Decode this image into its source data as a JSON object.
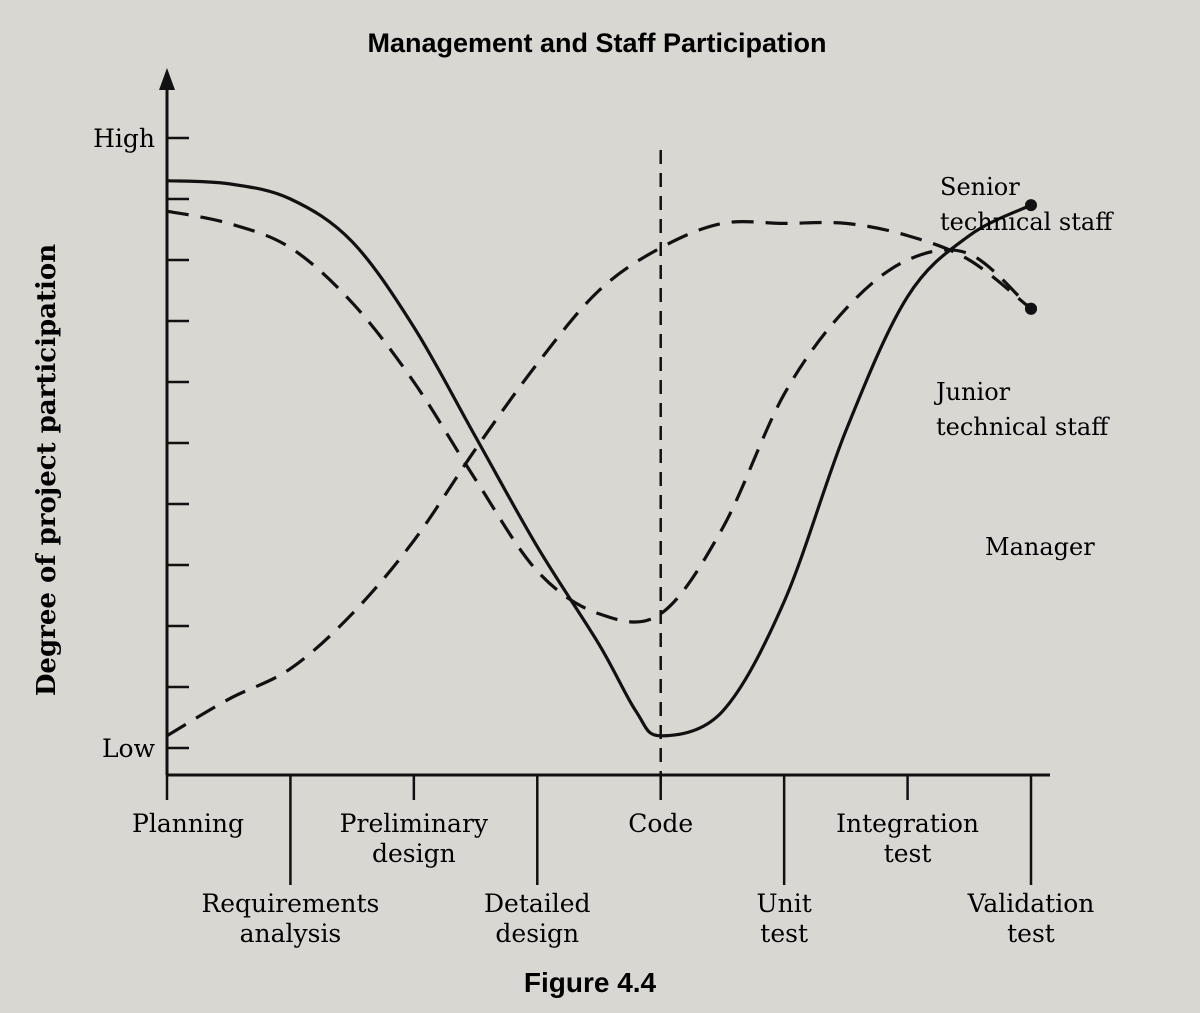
{
  "chart_data": {
    "type": "line",
    "title": "Management and Staff Participation",
    "caption": "Figure 4.4",
    "ylabel": "Degree of project participation",
    "xlabel": "",
    "y_ticks": [
      {
        "label": "High",
        "value": 10
      },
      {
        "label": "Low",
        "value": 0
      }
    ],
    "ylim": [
      0,
      10
    ],
    "x": [
      0,
      1,
      2,
      3,
      4,
      5,
      6,
      7
    ],
    "categories": [
      "Planning",
      "Requirements analysis",
      "Preliminary design",
      "Detailed design",
      "Code",
      "Unit test",
      "Integration test",
      "Validation test"
    ],
    "grid": false,
    "legend": "inline labels at right",
    "series": [
      {
        "name": "Senior technical staff",
        "style": "solid",
        "x": [
          0,
          0.5,
          1,
          1.5,
          2,
          2.5,
          3,
          3.5,
          3.8,
          4,
          4.5,
          5,
          5.5,
          6,
          6.5,
          7
        ],
        "y": [
          9.3,
          9.25,
          9.0,
          8.3,
          6.9,
          5.1,
          3.3,
          1.7,
          0.6,
          0.2,
          0.6,
          2.4,
          5.2,
          7.4,
          8.4,
          8.9
        ]
      },
      {
        "name": "Junior technical staff",
        "style": "dashed",
        "x": [
          0,
          0.5,
          1,
          1.5,
          2,
          2.5,
          3,
          3.5,
          4,
          4.5,
          5,
          5.5,
          6,
          6.5,
          7
        ],
        "y": [
          8.8,
          8.6,
          8.2,
          7.3,
          6.0,
          4.4,
          2.9,
          2.2,
          2.2,
          3.6,
          5.8,
          7.2,
          8.0,
          8.1,
          7.2
        ]
      },
      {
        "name": "Manager",
        "style": "dashed",
        "x": [
          0,
          0.5,
          1,
          1.5,
          2,
          2.5,
          3,
          3.5,
          4,
          4.5,
          5,
          5.5,
          6,
          6.5,
          7
        ],
        "y": [
          0.2,
          0.8,
          1.3,
          2.2,
          3.4,
          4.9,
          6.3,
          7.5,
          8.2,
          8.6,
          8.6,
          8.6,
          8.4,
          8.0,
          7.2
        ]
      }
    ],
    "series_label_lines": [
      [
        "Senior",
        "technical staff"
      ],
      [
        "Junior",
        "technical staff"
      ],
      [
        "Manager"
      ]
    ],
    "category_label_lines": [
      [
        "Planning"
      ],
      [
        "Requirements",
        "analysis"
      ],
      [
        "Preliminary",
        "design"
      ],
      [
        "Detailed",
        "design"
      ],
      [
        "Code"
      ],
      [
        "Unit",
        "test"
      ],
      [
        "Integration",
        "test"
      ],
      [
        "Validation",
        "test"
      ]
    ],
    "vertical_reference_line": {
      "x": 4,
      "style": "dashed"
    }
  }
}
